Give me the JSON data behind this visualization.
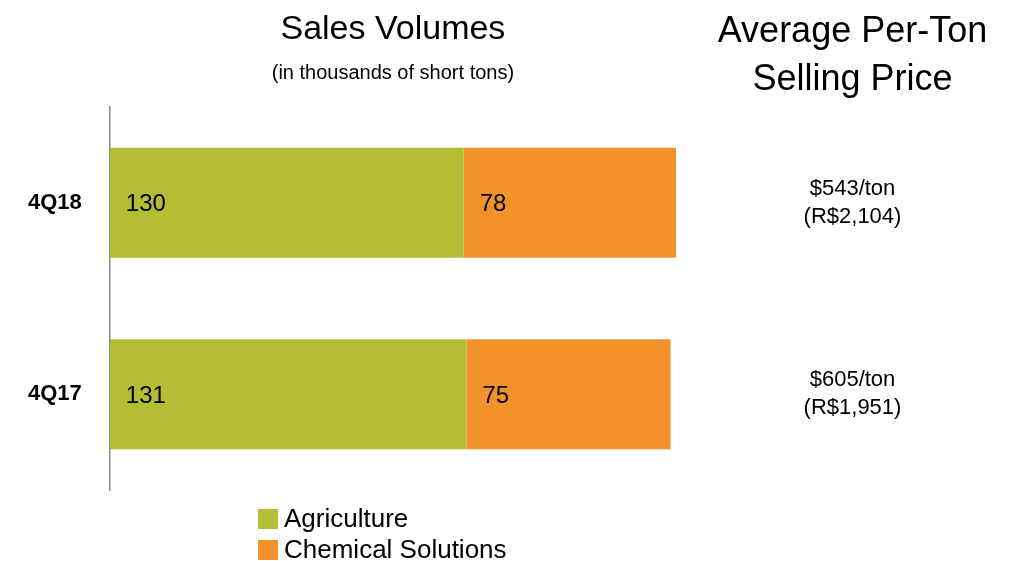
{
  "chart_data": {
    "type": "bar",
    "orientation": "horizontal",
    "stacked": true,
    "title": "Sales Volumes",
    "subtitle": "(in thousands of short tons)",
    "categories": [
      "4Q18",
      "4Q17"
    ],
    "series": [
      {
        "name": "Agriculture",
        "color": "#b5bd35",
        "values": [
          130,
          131
        ]
      },
      {
        "name": "Chemical Solutions",
        "color": "#f2922b",
        "values": [
          78,
          75
        ]
      }
    ],
    "data_labels": true,
    "legend": "bottom",
    "tick_labels": "y",
    "annotations": [
      "Average Per-Ton Selling Price",
      "$543/ton\n(R$2,104)",
      "$605/ton\n(R$1,951)"
    ]
  }
}
